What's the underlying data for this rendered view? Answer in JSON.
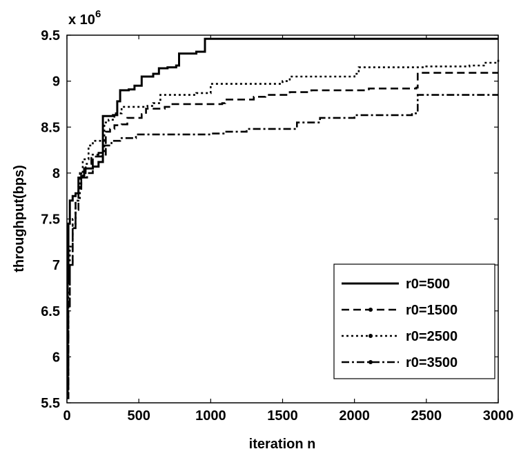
{
  "chart_data": {
    "type": "line",
    "title": "",
    "xlabel": "iteration n",
    "ylabel": "throughput(bps)",
    "y_multiplier_label": "x 10",
    "y_multiplier_exp": "6",
    "xlim": [
      0,
      3000
    ],
    "ylim": [
      5.5,
      9.5
    ],
    "xticks": [
      0,
      500,
      1000,
      1500,
      2000,
      2500,
      3000
    ],
    "yticks": [
      5.5,
      6,
      6.5,
      7,
      7.5,
      8,
      8.5,
      9,
      9.5
    ],
    "xtick_labels": [
      "0",
      "500",
      "1000",
      "1500",
      "2000",
      "2500",
      "3000"
    ],
    "ytick_labels": [
      "5.5",
      "6",
      "6.5",
      "7",
      "7.5",
      "8",
      "8.5",
      "9",
      "9.5"
    ],
    "grid": false,
    "legend_position": "bottom-right",
    "series": [
      {
        "name": "r0=500",
        "dash": "solid",
        "color": "#000000",
        "points": [
          [
            0,
            5.6
          ],
          [
            5,
            6.8
          ],
          [
            10,
            7.45
          ],
          [
            20,
            7.7
          ],
          [
            40,
            7.75
          ],
          [
            60,
            7.78
          ],
          [
            80,
            7.95
          ],
          [
            100,
            7.97
          ],
          [
            120,
            8.05
          ],
          [
            180,
            8.07
          ],
          [
            220,
            8.12
          ],
          [
            250,
            8.62
          ],
          [
            320,
            8.63
          ],
          [
            350,
            8.78
          ],
          [
            370,
            8.9
          ],
          [
            430,
            8.91
          ],
          [
            470,
            8.95
          ],
          [
            520,
            9.05
          ],
          [
            600,
            9.08
          ],
          [
            640,
            9.14
          ],
          [
            700,
            9.15
          ],
          [
            760,
            9.17
          ],
          [
            780,
            9.3
          ],
          [
            900,
            9.32
          ],
          [
            960,
            9.46
          ],
          [
            3000,
            9.46
          ]
        ]
      },
      {
        "name": "r0=1500",
        "dash": "dashed",
        "color": "#000000",
        "points": [
          [
            0,
            5.55
          ],
          [
            10,
            6.5
          ],
          [
            20,
            7.0
          ],
          [
            40,
            7.4
          ],
          [
            60,
            7.6
          ],
          [
            80,
            7.8
          ],
          [
            100,
            7.95
          ],
          [
            140,
            8.0
          ],
          [
            180,
            8.18
          ],
          [
            240,
            8.2
          ],
          [
            270,
            8.45
          ],
          [
            300,
            8.48
          ],
          [
            330,
            8.52
          ],
          [
            380,
            8.53
          ],
          [
            420,
            8.6
          ],
          [
            520,
            8.64
          ],
          [
            550,
            8.7
          ],
          [
            680,
            8.72
          ],
          [
            720,
            8.75
          ],
          [
            1080,
            8.76
          ],
          [
            1100,
            8.8
          ],
          [
            1300,
            8.83
          ],
          [
            1380,
            8.85
          ],
          [
            1550,
            8.88
          ],
          [
            1700,
            8.9
          ],
          [
            2100,
            8.92
          ],
          [
            2430,
            8.93
          ],
          [
            2440,
            9.09
          ],
          [
            3000,
            9.09
          ]
        ]
      },
      {
        "name": "r0=2500",
        "dash": "dotted",
        "color": "#000000",
        "points": [
          [
            0,
            5.6
          ],
          [
            10,
            6.7
          ],
          [
            20,
            7.2
          ],
          [
            40,
            7.5
          ],
          [
            60,
            7.7
          ],
          [
            90,
            8.0
          ],
          [
            110,
            8.15
          ],
          [
            150,
            8.3
          ],
          [
            180,
            8.35
          ],
          [
            260,
            8.55
          ],
          [
            290,
            8.58
          ],
          [
            330,
            8.65
          ],
          [
            380,
            8.72
          ],
          [
            560,
            8.73
          ],
          [
            600,
            8.76
          ],
          [
            650,
            8.85
          ],
          [
            900,
            8.87
          ],
          [
            1000,
            8.97
          ],
          [
            1500,
            9.0
          ],
          [
            1550,
            9.05
          ],
          [
            2000,
            9.08
          ],
          [
            2030,
            9.15
          ],
          [
            2500,
            9.16
          ],
          [
            2800,
            9.17
          ],
          [
            2900,
            9.2
          ],
          [
            3000,
            9.26
          ]
        ]
      },
      {
        "name": "r0=3500",
        "dash": "dashdot",
        "color": "#000000",
        "points": [
          [
            0,
            5.55
          ],
          [
            10,
            6.6
          ],
          [
            20,
            7.0
          ],
          [
            40,
            7.45
          ],
          [
            60,
            7.7
          ],
          [
            80,
            7.85
          ],
          [
            100,
            8.0
          ],
          [
            130,
            8.1
          ],
          [
            170,
            8.2
          ],
          [
            220,
            8.22
          ],
          [
            260,
            8.3
          ],
          [
            310,
            8.35
          ],
          [
            370,
            8.38
          ],
          [
            480,
            8.42
          ],
          [
            1000,
            8.43
          ],
          [
            1100,
            8.45
          ],
          [
            1250,
            8.48
          ],
          [
            1600,
            8.55
          ],
          [
            1760,
            8.6
          ],
          [
            2000,
            8.63
          ],
          [
            2400,
            8.65
          ],
          [
            2440,
            8.85
          ],
          [
            3000,
            8.85
          ]
        ]
      }
    ]
  }
}
